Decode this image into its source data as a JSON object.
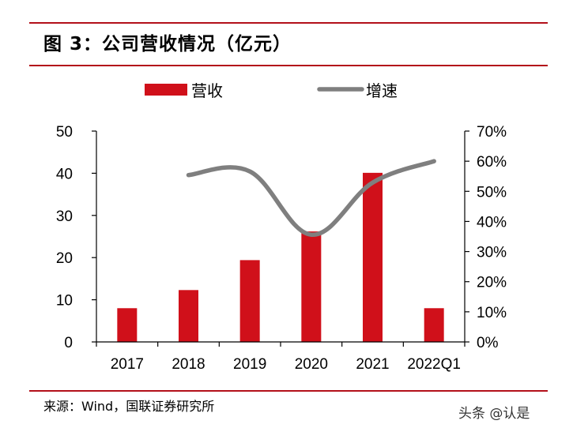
{
  "header": {
    "title": "图 3：公司营收情况（亿元）"
  },
  "footer": {
    "source": "来源：Wind，国联证券研究所"
  },
  "watermark": {
    "text": "头条 @认是"
  },
  "colors": {
    "bar": "#d0101a",
    "line": "#7f7f7f",
    "accent": "#b3101a"
  },
  "chart_data": {
    "type": "bar+line",
    "categories": [
      "2017",
      "2018",
      "2019",
      "2020",
      "2021",
      "2022Q1"
    ],
    "series": [
      {
        "name": "营收",
        "type": "bar",
        "axis": "left",
        "values": [
          8.0,
          12.3,
          19.4,
          26.2,
          40.1,
          8.0
        ]
      },
      {
        "name": "增速",
        "type": "line",
        "axis": "right",
        "values": [
          null,
          55.4,
          56.6,
          35.6,
          52.9,
          60.0
        ]
      }
    ],
    "y_left": {
      "min": 0,
      "max": 50,
      "ticks": [
        "0",
        "10",
        "20",
        "30",
        "40",
        "50"
      ]
    },
    "y_right": {
      "min": 0,
      "max": 70,
      "ticks": [
        "0%",
        "10%",
        "20%",
        "30%",
        "40%",
        "50%",
        "60%",
        "70%"
      ]
    },
    "legend_position": "top-center",
    "grid": false
  }
}
